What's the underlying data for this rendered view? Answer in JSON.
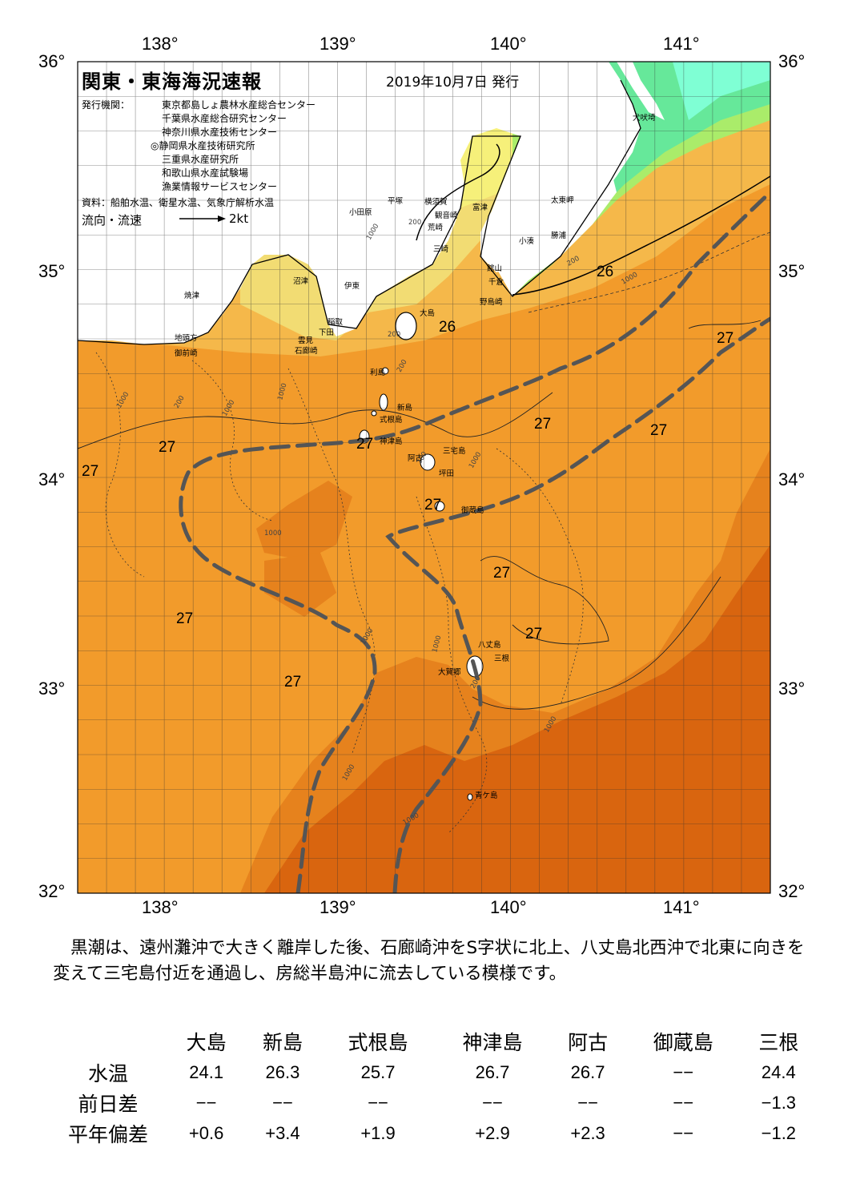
{
  "header": {
    "title": "関東・東海海況速報",
    "date": "2019年10月7日 発行",
    "issuer_label": "発行機関：",
    "issuers": [
      "東京都島しょ農林水産総合センター",
      "千葉県水産総合研究センター",
      "神奈川県水産技術センター",
      "◎静岡県水産技術研究所",
      "三重県水産研究所",
      "和歌山県水産試験場",
      "漁業情報サービスセンター"
    ],
    "sources": "資料：船舶水温、衛星水温、気象庁解析水温",
    "legend_label": "流向・流速",
    "legend_speed": "2kt"
  },
  "axes": {
    "longitudes": [
      "138°",
      "139°",
      "140°",
      "141°"
    ],
    "latitudes": [
      "36°",
      "35°",
      "34°",
      "33°",
      "32°"
    ],
    "lon_range": [
      137.5,
      141.5
    ],
    "lat_range": [
      32,
      36
    ]
  },
  "map": {
    "colors": {
      "land": "#ffffff",
      "sst_le_21": "#7fffd4",
      "sst_22": "#66e89a",
      "sst_23": "#aaec6a",
      "sst_24": "#f6f07a",
      "sst_25": "#f2dc73",
      "sst_26": "#f5b84a",
      "sst_27": "#f29b2b",
      "sst_28": "#e6821d",
      "sst_29": "#d9650f",
      "kuroshio_axis": "#555555"
    },
    "isotherm_labels": [
      "26",
      "26",
      "27",
      "27",
      "27",
      "27",
      "27",
      "27",
      "27",
      "27",
      "27",
      "27",
      "27"
    ],
    "place_names": [
      "犬吠埼",
      "太東岬",
      "勝浦",
      "小湊",
      "富津",
      "横須賀",
      "観音崎",
      "平塚",
      "荒崎",
      "三崎",
      "館山",
      "千倉",
      "野島崎",
      "小田原",
      "沼津",
      "伊東",
      "焼津",
      "稲取",
      "下田",
      "雲見",
      "石廊崎",
      "地頭方",
      "御前崎",
      "大島",
      "利島",
      "新島",
      "式根島",
      "神津島",
      "三宅島",
      "阿古",
      "坪田",
      "御蔵島",
      "八丈島",
      "三根",
      "大賀郷",
      "青ケ島"
    ],
    "depth_labels": [
      "200",
      "1000",
      "200",
      "1000",
      "200",
      "1000",
      "200",
      "1000",
      "200",
      "1000",
      "200",
      "1000",
      "1000",
      "1000",
      "1000",
      "1000",
      "200",
      "1000",
      "1000"
    ]
  },
  "summary": "黒潮は、遠州灘沖で大きく離岸した後、石廊崎沖をS字状に北上、八丈島北西沖で北東に向きを変えて三宅島付近を通過し、房総半島沖に流去している模様です。",
  "table": {
    "stations": [
      "大島",
      "新島",
      "式根島",
      "神津島",
      "阿古",
      "御蔵島",
      "三根"
    ],
    "rows": [
      {
        "label": "水温",
        "values": [
          "24.1",
          "26.3",
          "25.7",
          "26.7",
          "26.7",
          "−−",
          "24.4"
        ]
      },
      {
        "label": "前日差",
        "values": [
          "−−",
          "−−",
          "−−",
          "−−",
          "−−",
          "−−",
          "−1.3"
        ]
      },
      {
        "label": "平年偏差",
        "values": [
          "+0.6",
          "+3.4",
          "+1.9",
          "+2.9",
          "+2.3",
          "−−",
          "−1.2"
        ]
      }
    ]
  }
}
